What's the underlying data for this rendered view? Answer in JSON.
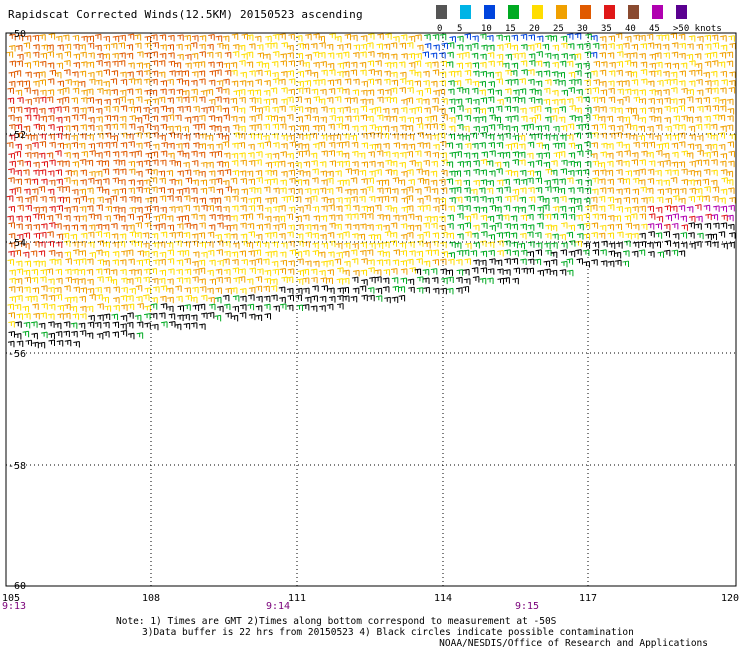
{
  "header": {
    "title": "Rapidscat Corrected Winds(12.5KM) 20150523 ascending"
  },
  "legend": {
    "colors": [
      "#555555",
      "#00b4e6",
      "#0044dd",
      "#00aa22",
      "#ffdd00",
      "#f0a000",
      "#e05a00",
      "#e01818",
      "#8a4a30",
      "#b000b0",
      "#5a0090"
    ],
    "labels": [
      "0",
      "5",
      "10",
      "15",
      "20",
      "25",
      "30",
      "35",
      "40",
      "45",
      ">50 knots"
    ]
  },
  "axes": {
    "lon_ticks": [
      "105",
      "108",
      "111",
      "114",
      "117",
      "120"
    ],
    "lat_ticks": [
      "-50",
      "-52",
      "-54",
      "-56",
      "-58",
      "-60"
    ],
    "times": [
      "9:13",
      "9:14",
      "9:15"
    ]
  },
  "notes": {
    "line1": "Note: 1) Times are GMT 2)Times along bottom correspond to measurement at -50S",
    "line2": "3)Data buffer is 22 hrs from 20150523 4) Black circles indicate possible contamination"
  },
  "credit": "NOAA/NESDIS/Office of Research and Applications"
}
